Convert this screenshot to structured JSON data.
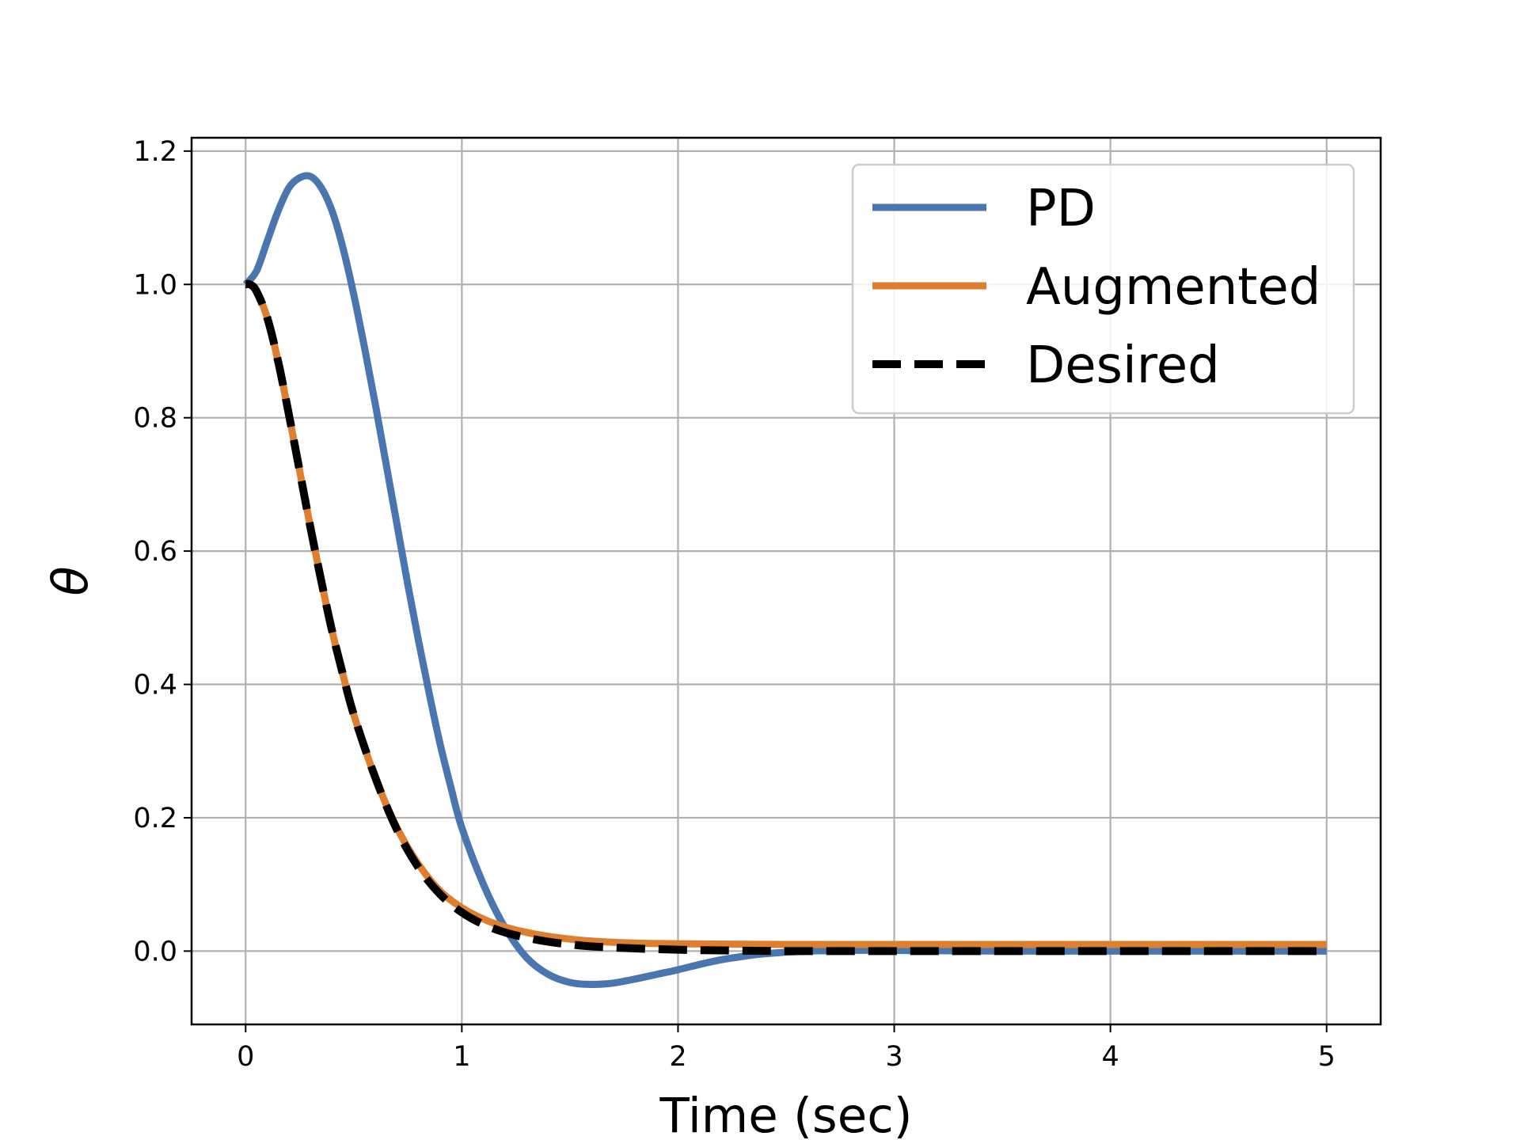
{
  "chart_data": {
    "type": "line",
    "title": "",
    "xlabel": "Time (sec)",
    "ylabel": "θ",
    "xlim": [
      -0.25,
      5.25
    ],
    "ylim": [
      -0.11,
      1.22
    ],
    "grid": true,
    "legend_position": "top-right",
    "x_ticks": [
      0,
      1,
      2,
      3,
      4,
      5
    ],
    "x_tick_labels": [
      "0",
      "1",
      "2",
      "3",
      "4",
      "5"
    ],
    "y_ticks": [
      0.0,
      0.2,
      0.4,
      0.6,
      0.8,
      1.0,
      1.2
    ],
    "y_tick_labels": [
      "0.0",
      "0.2",
      "0.4",
      "0.6",
      "0.8",
      "1.0",
      "1.2"
    ],
    "series": [
      {
        "name": "PD",
        "color": "#4a76b0",
        "style": "solid",
        "x": [
          0,
          0.05,
          0.1,
          0.15,
          0.2,
          0.25,
          0.3,
          0.35,
          0.4,
          0.45,
          0.5,
          0.55,
          0.6,
          0.65,
          0.7,
          0.75,
          0.8,
          0.85,
          0.9,
          0.95,
          1.0,
          1.1,
          1.2,
          1.3,
          1.4,
          1.5,
          1.6,
          1.7,
          1.8,
          1.9,
          2.0,
          2.1,
          2.2,
          2.3,
          2.4,
          2.6,
          2.8,
          3.0,
          3.5,
          4.0,
          4.5,
          5.0
        ],
        "y": [
          1.0,
          1.02,
          1.065,
          1.11,
          1.145,
          1.16,
          1.162,
          1.145,
          1.11,
          1.055,
          0.985,
          0.905,
          0.82,
          0.73,
          0.64,
          0.55,
          0.465,
          0.385,
          0.31,
          0.245,
          0.185,
          0.1,
          0.035,
          -0.01,
          -0.035,
          -0.047,
          -0.05,
          -0.048,
          -0.042,
          -0.035,
          -0.028,
          -0.02,
          -0.013,
          -0.008,
          -0.004,
          0.0,
          0.001,
          0.001,
          0.0,
          0.0,
          0.0,
          0.0
        ]
      },
      {
        "name": "Augmented",
        "color": "#dd7f2f",
        "style": "solid",
        "x": [
          0,
          0.02,
          0.05,
          0.1,
          0.15,
          0.2,
          0.25,
          0.3,
          0.35,
          0.4,
          0.45,
          0.5,
          0.6,
          0.7,
          0.8,
          0.9,
          1.0,
          1.1,
          1.2,
          1.3,
          1.4,
          1.5,
          1.6,
          1.8,
          2.0,
          2.5,
          3.0,
          3.5,
          4.0,
          4.5,
          5.0
        ],
        "y": [
          1.0,
          1.0,
          0.99,
          0.95,
          0.885,
          0.805,
          0.72,
          0.635,
          0.555,
          0.48,
          0.415,
          0.355,
          0.26,
          0.185,
          0.13,
          0.09,
          0.065,
          0.048,
          0.036,
          0.028,
          0.022,
          0.018,
          0.015,
          0.012,
          0.011,
          0.01,
          0.01,
          0.01,
          0.01,
          0.01,
          0.01
        ]
      },
      {
        "name": "Desired",
        "color": "#000000",
        "style": "dashed",
        "x": [
          0,
          0.02,
          0.05,
          0.1,
          0.15,
          0.2,
          0.25,
          0.3,
          0.35,
          0.4,
          0.45,
          0.5,
          0.6,
          0.7,
          0.8,
          0.9,
          1.0,
          1.1,
          1.2,
          1.3,
          1.4,
          1.5,
          1.6,
          1.8,
          2.0,
          2.2,
          2.5,
          3.0,
          3.5,
          4.0,
          4.5,
          5.0
        ],
        "y": [
          1.0,
          1.0,
          0.99,
          0.95,
          0.885,
          0.805,
          0.72,
          0.635,
          0.555,
          0.48,
          0.415,
          0.355,
          0.26,
          0.182,
          0.125,
          0.085,
          0.058,
          0.04,
          0.028,
          0.02,
          0.014,
          0.01,
          0.007,
          0.004,
          0.002,
          0.001,
          0.0,
          0.0,
          0.0,
          0.0,
          0.0,
          0.0
        ]
      }
    ]
  }
}
